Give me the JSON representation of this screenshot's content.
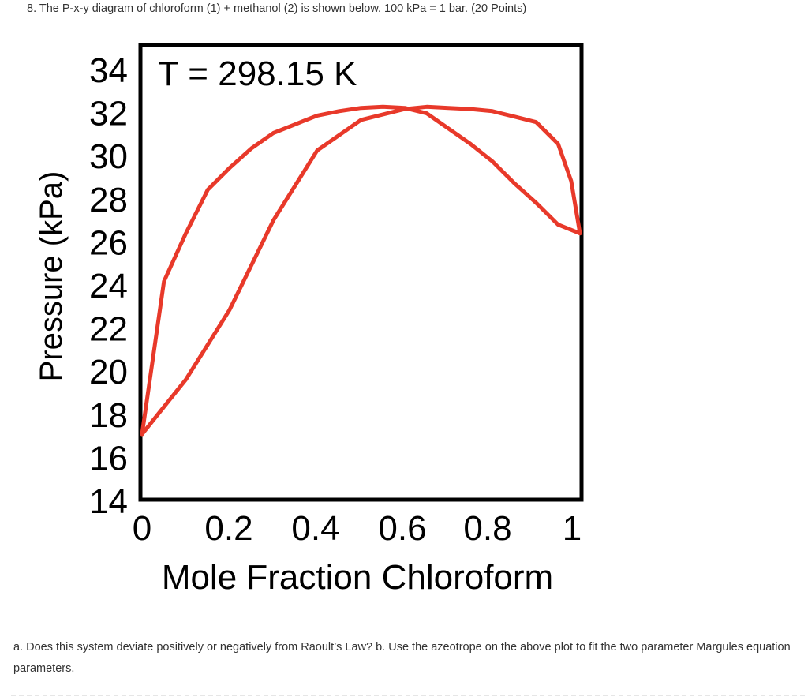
{
  "question": {
    "title": "8. The P-x-y diagram of chloroform (1) + methanol (2) is shown below. 100 kPa = 1 bar. (20 Points)",
    "body": "a. Does this system deviate positively or negatively from Raoult’s Law? b. Use the azeotrope on the above plot to fit the two parameter Margules equation parameters."
  },
  "chart_data": {
    "type": "line",
    "annotation": "T = 298.15 K",
    "xlabel": "Mole Fraction Chloroform",
    "ylabel": "Pressure (kPa)",
    "xlim": [
      0,
      1
    ],
    "ylim": [
      14,
      34
    ],
    "xticks": [
      "0",
      "0.2",
      "0.4",
      "0.6",
      "0.8",
      "1"
    ],
    "yticks": [
      "34",
      "32",
      "30",
      "28",
      "26",
      "24",
      "22",
      "20",
      "18",
      "16",
      "14"
    ],
    "grid": false,
    "line_color": "#e8392a",
    "series": [
      {
        "x": [
          0,
          0.05,
          0.1,
          0.15,
          0.2,
          0.25,
          0.3,
          0.35,
          0.4,
          0.45,
          0.5,
          0.55,
          0.6,
          0.65,
          0.7,
          0.75,
          0.8,
          0.85,
          0.9,
          0.95,
          1.0
        ],
        "y": [
          17.0,
          24.0,
          26.2,
          28.2,
          29.2,
          30.1,
          30.8,
          31.2,
          31.6,
          31.8,
          31.95,
          32.0,
          31.95,
          31.7,
          31.0,
          30.3,
          29.5,
          28.5,
          27.6,
          26.6,
          26.2
        ]
      },
      {
        "x": [
          0,
          0.1,
          0.2,
          0.3,
          0.4,
          0.5,
          0.6,
          0.65,
          0.7,
          0.75,
          0.8,
          0.85,
          0.9,
          0.95,
          0.98,
          1.0
        ],
        "y": [
          17.0,
          19.5,
          22.7,
          26.8,
          30.0,
          31.4,
          31.9,
          32.0,
          31.95,
          31.9,
          31.8,
          31.55,
          31.3,
          30.3,
          28.6,
          26.2
        ]
      }
    ]
  }
}
